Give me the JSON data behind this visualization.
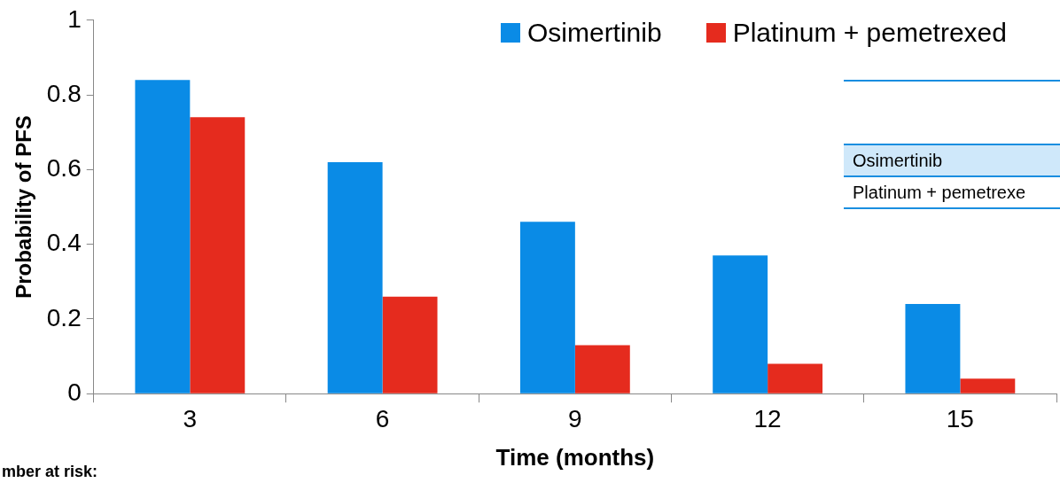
{
  "chart_data": {
    "type": "bar",
    "xlabel": "Time (months)",
    "ylabel": "Probability of PFS",
    "categories": [
      "3",
      "6",
      "9",
      "12",
      "15"
    ],
    "series": [
      {
        "name": "Osimertinib",
        "color": "#0a8be6",
        "values": [
          0.84,
          0.62,
          0.46,
          0.37,
          0.24
        ]
      },
      {
        "name": "Platinum + pemetrexed",
        "color": "#e52b1e",
        "values": [
          0.74,
          0.26,
          0.13,
          0.08,
          0.04
        ]
      }
    ],
    "ylim": [
      0,
      1
    ],
    "yticks": [
      0,
      0.2,
      0.4,
      0.6,
      0.8,
      1
    ],
    "grid": false,
    "legend": "top right",
    "annotations": [
      "Osimertinib",
      "Platinum + pemetrexe",
      "mber at risk:"
    ]
  }
}
